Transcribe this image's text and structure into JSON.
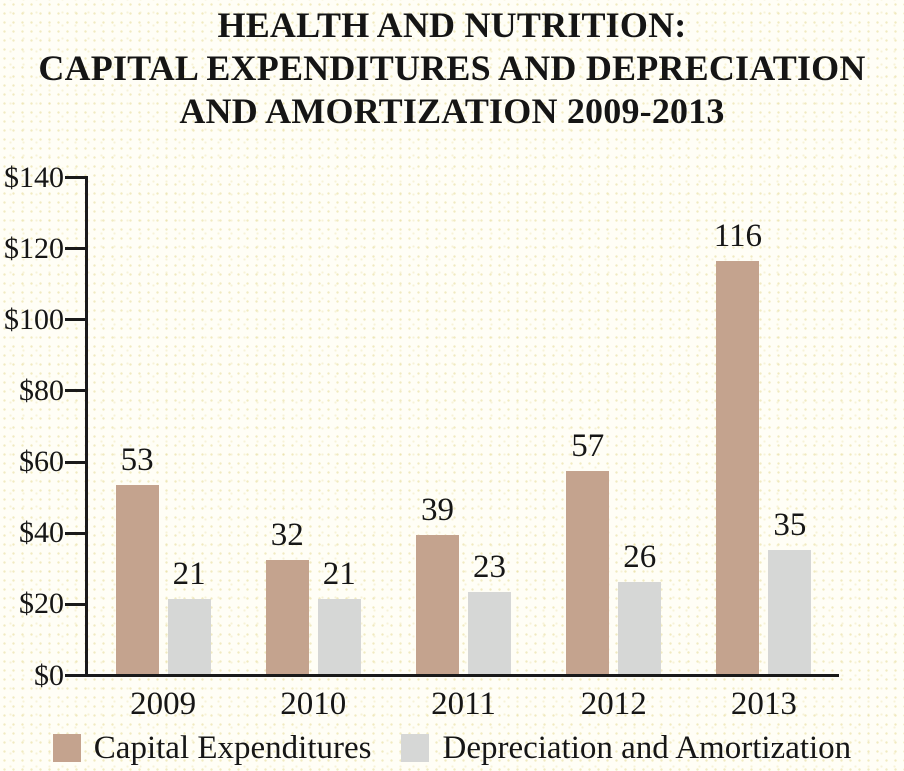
{
  "chart_data": {
    "type": "bar",
    "title": "HEALTH AND NUTRITION: CAPITAL EXPENDITURES AND DEPRECIATION AND AMORTIZATION 2009-2013",
    "title_lines": [
      "HEALTH AND NUTRITION:",
      "CAPITAL EXPENDITURES AND DEPRECIATION",
      "AND AMORTIZATION 2009-2013"
    ],
    "categories": [
      "2009",
      "2010",
      "2011",
      "2012",
      "2013"
    ],
    "series": [
      {
        "name": "Capital Expenditures",
        "color": "#c4a38e",
        "values": [
          53,
          32,
          39,
          57,
          116
        ]
      },
      {
        "name": "Depreciation and Amortization",
        "color": "#d6d7d6",
        "values": [
          21,
          21,
          23,
          26,
          35
        ]
      }
    ],
    "xlabel": "",
    "ylabel": "",
    "ylim": [
      0,
      140
    ],
    "y_tick_step": 20,
    "y_tick_labels": [
      "$0",
      "$20",
      "$40",
      "$60",
      "$80",
      "$100",
      "$120",
      "$140"
    ],
    "show_value_labels": true,
    "grid": false,
    "legend_position": "bottom",
    "axis_color": "#1a1a1a",
    "text_color": "#161616",
    "background_color": "#fffef6"
  }
}
